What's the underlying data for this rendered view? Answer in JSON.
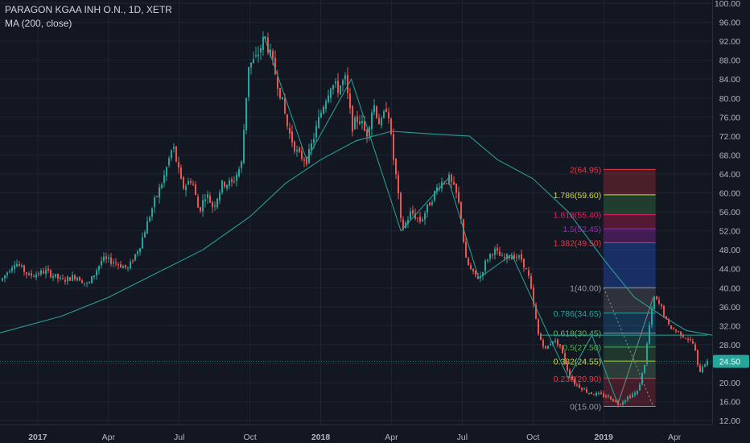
{
  "header": {
    "symbol_line": "PARAGON KGAA INH O.N., 1D, XETR",
    "indicator_line": "MA (200, close)"
  },
  "colors": {
    "background": "#131722",
    "grid": "#1f2433",
    "up": "#26a69a",
    "down": "#ef5350",
    "ma": "#2a9d96",
    "price_tag": "#26a69a",
    "axis_text": "#b2b5be"
  },
  "chart_data": {
    "type": "candlestick",
    "y_axis": {
      "ticks": [
        100,
        96,
        92,
        88,
        84,
        80,
        76,
        72,
        68,
        64,
        60,
        56,
        52,
        48,
        44,
        40,
        36,
        32,
        28,
        24,
        20,
        16,
        12
      ],
      "tick_labels": [
        "100.00",
        "96.00",
        "92.00",
        "88.00",
        "84.00",
        "80.00",
        "76.00",
        "72.00",
        "68.00",
        "64.00",
        "60.00",
        "56.00",
        "52.00",
        "48.00",
        "44.00",
        "40.00",
        "36.00",
        "32.00",
        "28.00",
        "24.00",
        "20.00",
        "16.00",
        "12.00"
      ],
      "range": [
        10.5,
        100
      ]
    },
    "x_axis": {
      "labels": [
        "2017",
        "Apr",
        "Jul",
        "Oct",
        "2018",
        "Apr",
        "Jul",
        "Oct",
        "2019",
        "Apr"
      ],
      "label_months": [
        0,
        3,
        6,
        9,
        12,
        15,
        18,
        21,
        24,
        27
      ],
      "range_months": [
        -1.6,
        28.6
      ]
    },
    "price_path": [
      {
        "m": -1.6,
        "p": 41.5
      },
      {
        "m": -1.0,
        "p": 45.5
      },
      {
        "m": -0.4,
        "p": 42.5
      },
      {
        "m": 0.3,
        "p": 43.5
      },
      {
        "m": 1.0,
        "p": 41.5
      },
      {
        "m": 1.6,
        "p": 42.5
      },
      {
        "m": 2.1,
        "p": 40.5
      },
      {
        "m": 2.7,
        "p": 46
      },
      {
        "m": 3.2,
        "p": 45.5
      },
      {
        "m": 3.8,
        "p": 44
      },
      {
        "m": 4.3,
        "p": 49
      },
      {
        "m": 4.9,
        "p": 58
      },
      {
        "m": 5.3,
        "p": 63
      },
      {
        "m": 5.7,
        "p": 70
      },
      {
        "m": 6.1,
        "p": 61
      },
      {
        "m": 6.5,
        "p": 63
      },
      {
        "m": 6.8,
        "p": 56
      },
      {
        "m": 7.1,
        "p": 60
      },
      {
        "m": 7.4,
        "p": 57
      },
      {
        "m": 7.8,
        "p": 62
      },
      {
        "m": 8.2,
        "p": 62
      },
      {
        "m": 8.6,
        "p": 66
      },
      {
        "m": 8.9,
        "p": 87
      },
      {
        "m": 9.2,
        "p": 88
      },
      {
        "m": 9.6,
        "p": 93
      },
      {
        "m": 10.0,
        "p": 86
      },
      {
        "m": 10.3,
        "p": 80
      },
      {
        "m": 10.6,
        "p": 73
      },
      {
        "m": 11.0,
        "p": 68
      },
      {
        "m": 11.4,
        "p": 67
      },
      {
        "m": 11.8,
        "p": 74
      },
      {
        "m": 12.1,
        "p": 79
      },
      {
        "m": 12.4,
        "p": 83
      },
      {
        "m": 12.7,
        "p": 82
      },
      {
        "m": 13.0,
        "p": 84
      },
      {
        "m": 13.3,
        "p": 74
      },
      {
        "m": 13.6,
        "p": 76
      },
      {
        "m": 13.9,
        "p": 72
      },
      {
        "m": 14.2,
        "p": 79
      },
      {
        "m": 14.5,
        "p": 74
      },
      {
        "m": 14.8,
        "p": 79
      },
      {
        "m": 15.0,
        "p": 69
      },
      {
        "m": 15.2,
        "p": 62
      },
      {
        "m": 15.4,
        "p": 52
      },
      {
        "m": 15.8,
        "p": 56
      },
      {
        "m": 16.2,
        "p": 54
      },
      {
        "m": 16.6,
        "p": 58
      },
      {
        "m": 17.0,
        "p": 62
      },
      {
        "m": 17.4,
        "p": 63
      },
      {
        "m": 17.7,
        "p": 60
      },
      {
        "m": 17.9,
        "p": 56
      },
      {
        "m": 18.1,
        "p": 46
      },
      {
        "m": 18.4,
        "p": 43
      },
      {
        "m": 18.7,
        "p": 42
      },
      {
        "m": 19.0,
        "p": 46
      },
      {
        "m": 19.3,
        "p": 48
      },
      {
        "m": 19.7,
        "p": 46
      },
      {
        "m": 20.1,
        "p": 47
      },
      {
        "m": 20.5,
        "p": 46
      },
      {
        "m": 20.8,
        "p": 42
      },
      {
        "m": 21.0,
        "p": 36
      },
      {
        "m": 21.2,
        "p": 30
      },
      {
        "m": 21.5,
        "p": 27
      },
      {
        "m": 21.8,
        "p": 29
      },
      {
        "m": 22.1,
        "p": 28
      },
      {
        "m": 22.4,
        "p": 23
      },
      {
        "m": 22.7,
        "p": 20
      },
      {
        "m": 23.0,
        "p": 19
      },
      {
        "m": 23.3,
        "p": 18
      },
      {
        "m": 23.7,
        "p": 17.5
      },
      {
        "m": 24.2,
        "p": 17
      },
      {
        "m": 24.6,
        "p": 15.5
      },
      {
        "m": 25.0,
        "p": 17
      },
      {
        "m": 25.4,
        "p": 18
      },
      {
        "m": 25.7,
        "p": 24
      },
      {
        "m": 25.9,
        "p": 32
      },
      {
        "m": 26.1,
        "p": 38
      },
      {
        "m": 26.4,
        "p": 36
      },
      {
        "m": 26.7,
        "p": 32
      },
      {
        "m": 27.0,
        "p": 31
      },
      {
        "m": 27.3,
        "p": 30
      },
      {
        "m": 27.6,
        "p": 29
      },
      {
        "m": 27.8,
        "p": 28
      },
      {
        "m": 28.0,
        "p": 22
      },
      {
        "m": 28.2,
        "p": 24
      },
      {
        "m": 28.5,
        "p": 24.5
      }
    ],
    "moving_average_path": [
      {
        "m": -1.6,
        "p": 30.5
      },
      {
        "m": 1.0,
        "p": 34
      },
      {
        "m": 3.0,
        "p": 38
      },
      {
        "m": 5.0,
        "p": 43
      },
      {
        "m": 7.0,
        "p": 48
      },
      {
        "m": 9.0,
        "p": 55
      },
      {
        "m": 10.5,
        "p": 62
      },
      {
        "m": 12.0,
        "p": 67
      },
      {
        "m": 13.5,
        "p": 71
      },
      {
        "m": 15.0,
        "p": 73
      },
      {
        "m": 16.5,
        "p": 72.5
      },
      {
        "m": 18.3,
        "p": 72
      },
      {
        "m": 19.5,
        "p": 67
      },
      {
        "m": 21.0,
        "p": 63
      },
      {
        "m": 22.5,
        "p": 56
      },
      {
        "m": 24.0,
        "p": 46
      },
      {
        "m": 25.3,
        "p": 38
      },
      {
        "m": 26.5,
        "p": 34
      },
      {
        "m": 27.5,
        "p": 31
      },
      {
        "m": 28.6,
        "p": 30
      }
    ],
    "last_price": {
      "value": 24.5,
      "label": "24.50"
    },
    "zigzag": [
      {
        "m": 9.6,
        "p": 93
      },
      {
        "m": 11.4,
        "p": 67
      },
      {
        "m": 13.3,
        "p": 84
      },
      {
        "m": 15.4,
        "p": 52
      },
      {
        "m": 17.4,
        "p": 63
      },
      {
        "m": 18.7,
        "p": 42
      },
      {
        "m": 20.1,
        "p": 47
      },
      {
        "m": 22.5,
        "p": 21
      },
      {
        "m": 23.5,
        "p": 30
      },
      {
        "m": 24.6,
        "p": 15.5
      },
      {
        "m": 26.1,
        "p": 38
      }
    ],
    "horizontal_line": {
      "value": 30,
      "from_month": 21.3,
      "to_month": 28.4
    },
    "fib_extension": {
      "from_month": 24.0,
      "to_month": 26.2,
      "levels": [
        {
          "ratio": "0",
          "price": 15.0,
          "label": "0(15.00)",
          "color": "#9598a1",
          "fill": "rgba(255,255,255,0.05)"
        },
        {
          "ratio": "0.236",
          "price": 20.9,
          "label": "0.236(20.90)",
          "color": "#f23645",
          "fill": "rgba(242,54,69,0.22)"
        },
        {
          "ratio": "0.382",
          "price": 24.55,
          "label": "0.382(24.55)",
          "color": "#cddc39",
          "fill": "rgba(129,199,132,0.22)"
        },
        {
          "ratio": "0.5",
          "price": 27.5,
          "label": "0.5(27.50)",
          "color": "#4caf50",
          "fill": "rgba(76,175,80,0.22)"
        },
        {
          "ratio": "0.618",
          "price": 30.45,
          "label": "0.618(30.45)",
          "color": "#66bb6a",
          "fill": "rgba(38,166,154,0.22)"
        },
        {
          "ratio": "0.786",
          "price": 34.65,
          "label": "0.786(34.65)",
          "color": "#26a69a",
          "fill": "rgba(33,150,243,0.22)"
        },
        {
          "ratio": "1",
          "price": 40.0,
          "label": "1(40.00)",
          "color": "#9598a1",
          "fill": "rgba(149,152,161,0.22)"
        },
        {
          "ratio": "1.382",
          "price": 49.5,
          "label": "1.382(49.50)",
          "color": "#f23645",
          "fill": "rgba(41,98,255,0.30)"
        },
        {
          "ratio": "1.5",
          "price": 52.45,
          "label": "1.5(52.45)",
          "color": "#9c27b0",
          "fill": "rgba(156,39,176,0.35)"
        },
        {
          "ratio": "1.618",
          "price": 55.4,
          "label": "1.618(55.40)",
          "color": "#e91e63",
          "fill": "rgba(233,30,99,0.30)"
        },
        {
          "ratio": "1.786",
          "price": 59.6,
          "label": "1.786(59.60)",
          "color": "#cddc39",
          "fill": "rgba(76,175,80,0.25)"
        },
        {
          "ratio": "2",
          "price": 64.95,
          "label": "2(64.95)",
          "color": "#f23645",
          "fill": "rgba(242,54,69,0.25)"
        }
      ]
    }
  }
}
